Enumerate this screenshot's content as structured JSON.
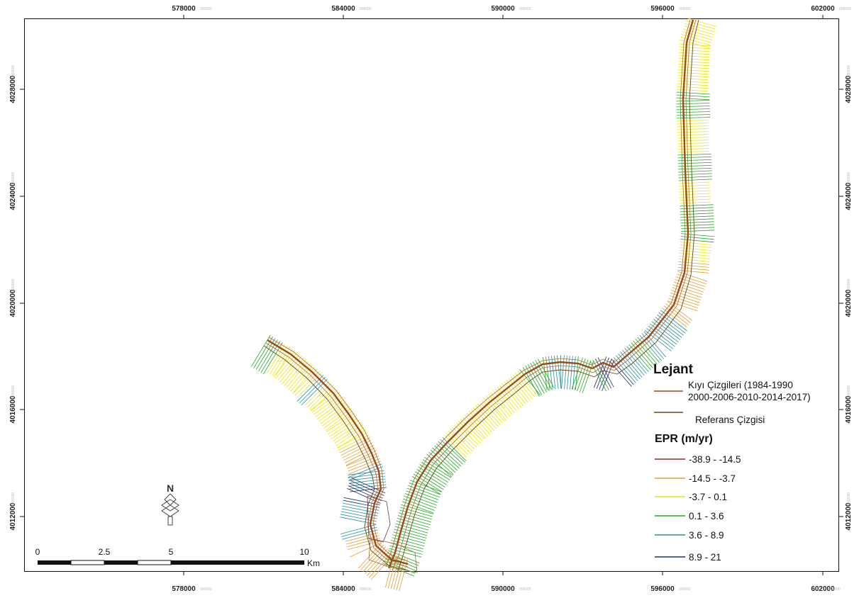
{
  "axes": {
    "x_ticks": [
      {
        "major": "578000",
        "minor": "000000"
      },
      {
        "major": "584000",
        "minor": "000000"
      },
      {
        "major": "590000",
        "minor": "000000"
      },
      {
        "major": "596000",
        "minor": "000000"
      },
      {
        "major": "602000",
        "minor": "000000"
      }
    ],
    "y_ticks": [
      {
        "major": "4028000",
        "minor": "000000"
      },
      {
        "major": "4024000",
        "minor": "000000"
      },
      {
        "major": "4020000",
        "minor": "000000"
      },
      {
        "major": "4016000",
        "minor": "000000"
      },
      {
        "major": "4012000",
        "minor": "000000"
      }
    ]
  },
  "legend": {
    "title": "Lejant",
    "shoreline_line1": "Kıyı Çizgileri (1984-1990",
    "shoreline_line2": "2000-2006-2010-2014-2017)",
    "baseline": "Referans Çizgisi",
    "epr_title": "EPR (m/yr)",
    "classes": [
      {
        "label": "-38.9 - -14.5",
        "color": "#8b2a1a"
      },
      {
        "label": "-14.5 - -3.7",
        "color": "#e0a030"
      },
      {
        "label": "-3.7 - 0.1",
        "color": "#f2e400"
      },
      {
        "label": "0.1 - 3.6",
        "color": "#22a822"
      },
      {
        "label": "3.6 - 8.9",
        "color": "#2a8f9a"
      },
      {
        "label": "8.9 - 21",
        "color": "#1f2f6a"
      }
    ],
    "shoreline_color": "#9c4a1c",
    "baseline_color": "#6b4a10"
  },
  "scalebar": {
    "labels": [
      "0",
      "2.5",
      "5",
      "10"
    ],
    "unit": "Km"
  },
  "north_arrow": {
    "label": "N"
  }
}
